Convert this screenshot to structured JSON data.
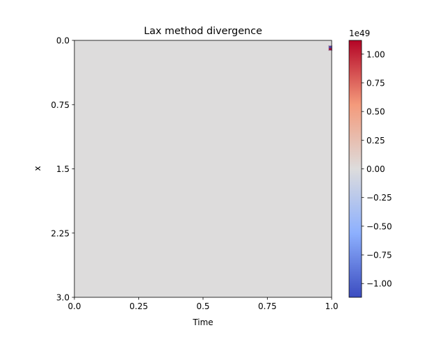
{
  "chart_data": {
    "type": "heatmap",
    "title": "Lax method divergence",
    "xlabel": "Time",
    "ylabel": "x",
    "xlim": [
      0.0,
      1.0
    ],
    "ylim": [
      3.0,
      0.0
    ],
    "y_axis_inverted": true,
    "x_ticks": [
      "0.0",
      "0.25",
      "0.5",
      "0.75",
      "1.0"
    ],
    "x_tick_values": [
      0.0,
      0.25,
      0.5,
      0.75,
      1.0
    ],
    "y_ticks": [
      "0.0",
      "0.75",
      "1.5",
      "2.25",
      "3.0"
    ],
    "y_tick_values": [
      0.0,
      0.75,
      1.5,
      2.25,
      3.0
    ],
    "colormap": "coolwarm",
    "background_value": 0.0,
    "background_color": "#dddcdc",
    "colorbar": {
      "scale_label": "1e49",
      "range": [
        -1.12,
        1.12
      ],
      "ticks": [
        "−1.00",
        "−0.75",
        "−0.50",
        "−0.25",
        "0.00",
        "0.25",
        "0.50",
        "0.75",
        "1.00"
      ],
      "tick_values": [
        -1.0,
        -0.75,
        -0.5,
        -0.25,
        0.0,
        0.25,
        0.5,
        0.75,
        1.0
      ],
      "low_color": "#3b4cc0",
      "mid_color": "#dddcdc",
      "high_color": "#b40426"
    },
    "spike": {
      "time": 0.995,
      "x": 0.09,
      "low_color": "#3b4cc0",
      "high_color": "#b40426"
    }
  }
}
